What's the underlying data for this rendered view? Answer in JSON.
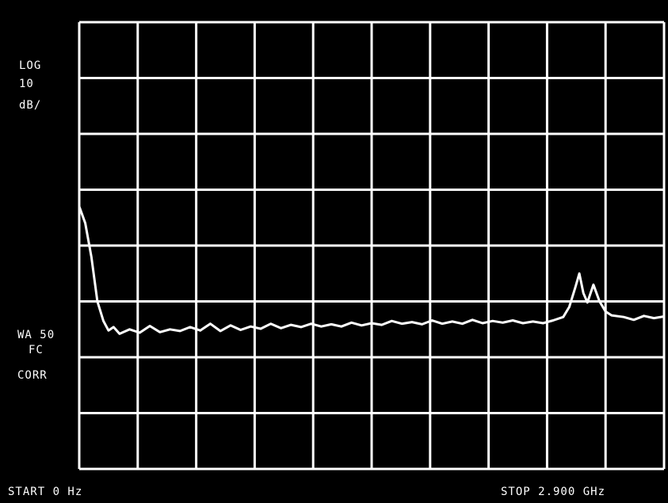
{
  "screen": {
    "scale_type": "LOG",
    "scale_value": "10",
    "scale_unit": "dB/",
    "bandwidth_line1": "WA 50",
    "bandwidth_line2": "FC",
    "correction": "CORR",
    "start_label": "START  0 Hz",
    "stop_label": "STOP  2.900 GHz"
  },
  "chart_data": {
    "type": "line",
    "x_unit": "GHz",
    "xlim": [
      0,
      2.9
    ],
    "x_divisions": 10,
    "y_divisions": 8,
    "y_scale": "log",
    "y_unit": "dB",
    "y_per_division": 10,
    "grid": true,
    "colors": {
      "background": "#000000",
      "trace": "#ffffff",
      "grid": "#ffffff"
    },
    "series": [
      {
        "x": [
          0.0,
          0.03,
          0.06,
          0.09,
          0.12,
          0.145,
          0.17,
          0.2,
          0.25,
          0.3,
          0.35,
          0.4,
          0.45,
          0.5,
          0.55,
          0.6,
          0.65,
          0.7,
          0.75,
          0.8,
          0.85,
          0.9,
          0.95,
          1.0,
          1.05,
          1.1,
          1.15,
          1.2,
          1.25,
          1.3,
          1.35,
          1.4,
          1.45,
          1.5,
          1.55,
          1.6,
          1.65,
          1.7,
          1.75,
          1.8,
          1.85,
          1.9,
          1.95,
          2.0,
          2.05,
          2.1,
          2.15,
          2.2,
          2.25,
          2.3,
          2.35,
          2.4,
          2.43,
          2.46,
          2.48,
          2.5,
          2.52,
          2.55,
          2.58,
          2.61,
          2.64,
          2.7,
          2.75,
          2.8,
          2.85,
          2.9
        ],
        "y": [
          -33,
          -36,
          -42,
          -50,
          -53.5,
          -55.2,
          -54.6,
          -55.8,
          -55.0,
          -55.6,
          -54.4,
          -55.5,
          -55.0,
          -55.3,
          -54.6,
          -55.2,
          -54.0,
          -55.3,
          -54.3,
          -55.1,
          -54.5,
          -54.9,
          -54.0,
          -54.8,
          -54.2,
          -54.6,
          -54.0,
          -54.5,
          -54.1,
          -54.5,
          -53.8,
          -54.3,
          -53.9,
          -54.2,
          -53.5,
          -54.0,
          -53.7,
          -54.1,
          -53.4,
          -54.0,
          -53.6,
          -54.0,
          -53.3,
          -53.9,
          -53.5,
          -53.8,
          -53.4,
          -53.9,
          -53.6,
          -53.9,
          -53.4,
          -52.8,
          -51.0,
          -47.5,
          -45.0,
          -48.5,
          -50.2,
          -47.0,
          -50.0,
          -51.8,
          -52.5,
          -52.8,
          -53.3,
          -52.6,
          -53.0,
          -52.7
        ]
      }
    ]
  }
}
